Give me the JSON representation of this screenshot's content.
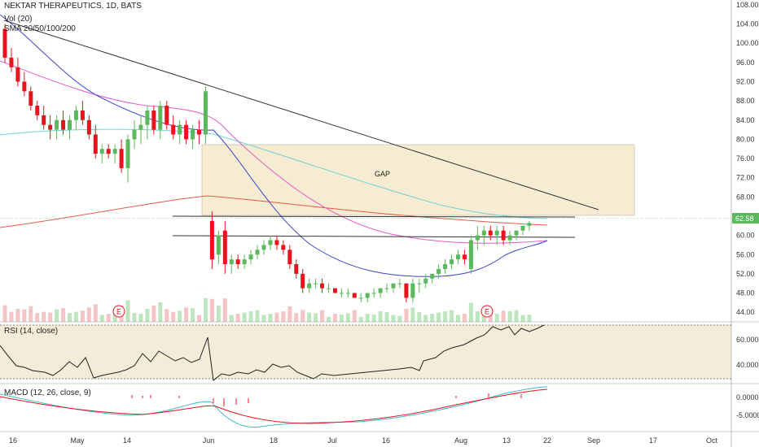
{
  "header": {
    "title": "NEKTAR THERAPEUTICS, 1D, BATS",
    "indicator_1": "Vol (20)",
    "indicator_2": "SMA 20/50/100/200"
  },
  "rsi_panel": {
    "label": "RSI (14, close)",
    "ticks": [
      "60.0000",
      "40.0000"
    ]
  },
  "macd_panel": {
    "label": "MACD (12, 26, close, 9)",
    "ticks": [
      "0.0000",
      "-5.0000"
    ]
  },
  "gap_label": "GAP",
  "earnings_marker": "E",
  "last_price_label": "62.58",
  "colors": {
    "up": "#5cb85c",
    "down": "#e8131d",
    "sma20": "#3b46c6",
    "sma50": "#e35ac6",
    "sma100": "#6fd3d3",
    "sma200": "#e35a4b",
    "trendline": "#333333",
    "gap_fill": "#f6ecd2",
    "rsi_band": "#f3ecd9",
    "price_tag": "#5cb85c"
  },
  "chart_data": {
    "type": "candlestick",
    "title": "NEKTAR THERAPEUTICS, 1D, BATS",
    "x_ticks": [
      "16",
      "May",
      "14",
      "Jun",
      "18",
      "Jul",
      "16",
      "Aug",
      "13",
      "22",
      "Sep",
      "17",
      "Oct"
    ],
    "y_ticks": [
      "44.00",
      "48.00",
      "52.00",
      "56.00",
      "60.00",
      "64.00",
      "68.00",
      "72.00",
      "76.00",
      "80.00",
      "84.00",
      "88.00",
      "92.00",
      "96.00",
      "100.00",
      "104.00",
      "108.00"
    ],
    "ylim": [
      42,
      109
    ],
    "last_price": 62.58,
    "candles": [
      [
        103,
        104,
        96,
        97
      ],
      [
        97,
        99,
        94,
        95
      ],
      [
        95,
        97,
        91,
        92
      ],
      [
        92,
        94,
        89,
        90
      ],
      [
        90,
        91,
        86,
        87
      ],
      [
        87,
        88,
        84,
        85
      ],
      [
        85,
        87,
        82,
        83
      ],
      [
        83,
        85,
        80,
        82
      ],
      [
        82,
        85,
        80,
        84
      ],
      [
        84,
        86,
        81,
        82
      ],
      [
        82,
        85,
        80,
        84
      ],
      [
        84,
        87,
        82,
        86
      ],
      [
        86,
        88,
        83,
        84
      ],
      [
        84,
        85,
        80,
        81
      ],
      [
        81,
        83,
        76,
        77
      ],
      [
        77,
        79,
        75,
        78
      ],
      [
        78,
        79,
        76,
        77
      ],
      [
        77,
        79,
        75,
        78
      ],
      [
        78,
        80,
        73,
        74
      ],
      [
        74,
        81,
        71,
        80
      ],
      [
        80,
        84,
        78,
        82
      ],
      [
        82,
        85,
        79,
        83
      ],
      [
        83,
        87,
        80,
        86
      ],
      [
        86,
        87,
        81,
        82
      ],
      [
        82,
        88,
        80,
        87
      ],
      [
        87,
        88,
        82,
        83
      ],
      [
        83,
        85,
        80,
        81
      ],
      [
        81,
        84,
        79,
        83
      ],
      [
        83,
        84,
        79,
        80
      ],
      [
        80,
        83,
        78,
        82
      ],
      [
        82,
        84,
        79,
        81
      ],
      [
        81,
        91,
        79,
        90
      ],
      [
        63,
        65,
        53,
        55
      ],
      [
        56,
        61,
        54,
        60
      ],
      [
        61,
        63,
        52,
        54
      ],
      [
        54,
        56,
        52,
        55
      ],
      [
        55,
        56,
        53,
        54
      ],
      [
        54,
        56,
        53,
        55
      ],
      [
        55,
        57,
        54,
        56
      ],
      [
        56,
        58,
        55,
        57
      ],
      [
        57,
        59,
        56,
        58
      ],
      [
        58,
        60,
        57,
        59
      ],
      [
        59,
        60,
        57,
        58
      ],
      [
        58,
        59,
        56,
        57
      ],
      [
        57,
        58,
        53,
        54
      ],
      [
        54,
        55,
        51,
        52
      ],
      [
        52,
        53,
        48,
        49
      ],
      [
        49,
        51,
        48,
        50
      ],
      [
        50,
        51,
        49,
        50
      ],
      [
        50,
        51,
        48,
        49
      ],
      [
        49,
        50,
        48,
        49
      ],
      [
        49,
        49,
        48,
        48
      ],
      [
        48,
        49,
        47,
        48
      ],
      [
        48,
        49,
        47,
        48
      ],
      [
        48,
        48,
        47,
        47
      ],
      [
        47,
        48,
        46,
        47
      ],
      [
        47,
        48,
        46,
        48
      ],
      [
        48,
        49,
        47,
        48
      ],
      [
        48,
        49,
        47,
        49
      ],
      [
        49,
        50,
        48,
        49
      ],
      [
        49,
        50,
        48,
        50
      ],
      [
        50,
        51,
        49,
        50
      ],
      [
        50,
        50,
        46,
        47
      ],
      [
        47,
        51,
        46,
        50
      ],
      [
        50,
        51,
        48,
        50
      ],
      [
        50,
        52,
        49,
        51
      ],
      [
        51,
        52,
        50,
        52
      ],
      [
        52,
        54,
        51,
        53
      ],
      [
        53,
        55,
        52,
        54
      ],
      [
        54,
        56,
        53,
        55
      ],
      [
        55,
        57,
        54,
        56
      ],
      [
        56,
        57,
        54,
        55
      ],
      [
        53,
        60,
        52,
        59
      ],
      [
        59,
        62,
        57,
        60
      ],
      [
        60,
        62,
        58,
        61
      ],
      [
        61,
        62,
        59,
        60
      ],
      [
        60,
        62,
        58,
        61
      ],
      [
        61,
        62,
        58,
        59
      ],
      [
        59,
        61,
        58,
        60
      ],
      [
        60,
        61,
        59,
        61
      ],
      [
        61,
        62,
        60,
        62
      ],
      [
        62,
        63,
        61,
        62.58
      ]
    ]
  }
}
